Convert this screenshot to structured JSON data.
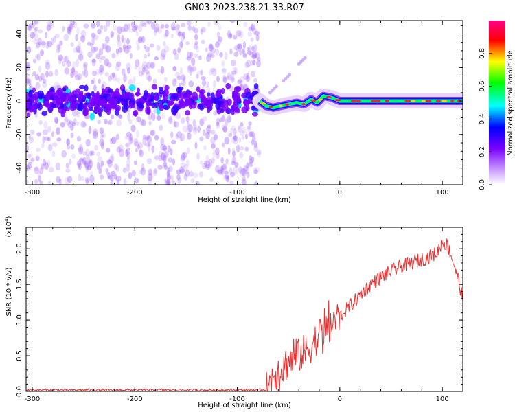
{
  "title": "GN03.2023.238.21.33.R07",
  "chart_data": [
    {
      "type": "heatmap",
      "xlabel": "Height of straight line (km)",
      "ylabel": "Frequency (Hz)",
      "xlim": [
        -306,
        120
      ],
      "ylim": [
        -50,
        48
      ],
      "x_ticks": [
        "-300",
        "-200",
        "-100",
        "0",
        "100"
      ],
      "y_ticks": [
        "-40",
        "-20",
        "0",
        "20",
        "40"
      ],
      "colorbar": {
        "label": "Normalized spectral amplitude",
        "range": [
          0.0,
          1.0
        ],
        "ticks": [
          "0.0",
          "0.2",
          "0.4",
          "0.6",
          "0.8"
        ],
        "colormap": [
          "#ffffff",
          "#7700ff",
          "#0000ff",
          "#00ffff",
          "#00ff00",
          "#ffff00",
          "#ff0000",
          "#ff0088"
        ]
      },
      "regions": [
        {
          "x_range": [
            -306,
            -78
          ],
          "description_level": "scattered noise",
          "center_band_hz": [
            -8,
            8
          ]
        },
        {
          "x_range": [
            -78,
            120
          ],
          "description_level": "coherent signal"
        }
      ],
      "signal_trace": [
        {
          "x": -78,
          "y": 0
        },
        {
          "x": -72,
          "y": -3
        },
        {
          "x": -65,
          "y": -4
        },
        {
          "x": -58,
          "y": -3
        },
        {
          "x": -50,
          "y": -2
        },
        {
          "x": -42,
          "y": -1
        },
        {
          "x": -35,
          "y": -2
        },
        {
          "x": -28,
          "y": 1
        },
        {
          "x": -22,
          "y": -1
        },
        {
          "x": -16,
          "y": 3
        },
        {
          "x": -8,
          "y": 2
        },
        {
          "x": 0,
          "y": 0
        },
        {
          "x": 20,
          "y": 0
        },
        {
          "x": 60,
          "y": 0
        },
        {
          "x": 100,
          "y": 0
        },
        {
          "x": 120,
          "y": 0
        }
      ],
      "feature_trace": [
        {
          "x": -68,
          "y": 5
        },
        {
          "x": -55,
          "y": 12
        },
        {
          "x": -40,
          "y": 22
        }
      ]
    },
    {
      "type": "line",
      "xlabel": "Height of straight line (km)",
      "ylabel": "SNR (10 * v/v)",
      "y_multiplier": "(x10",
      "y_multiplier_exp": "4",
      "y_multiplier_close": ")",
      "xlim": [
        -306,
        120
      ],
      "ylim": [
        0.0,
        2.3
      ],
      "x_ticks": [
        "-300",
        "-200",
        "-100",
        "0",
        "100"
      ],
      "y_ticks": [
        "0.0",
        "0.5",
        "1.0",
        "1.5",
        "2.0"
      ],
      "color": "#e83030",
      "series": [
        {
          "x": [
            -306,
            -280,
            -250,
            -200,
            -150,
            -100,
            -80,
            -70,
            -65,
            -60,
            -55,
            -50,
            -45,
            -40,
            -35,
            -30,
            -25,
            -20,
            -15,
            -10,
            -5,
            0,
            10,
            20,
            30,
            40,
            50,
            60,
            70,
            80,
            90,
            95,
            100,
            105,
            110,
            115,
            120
          ],
          "values": [
            0.02,
            0.02,
            0.02,
            0.02,
            0.02,
            0.02,
            0.02,
            0.03,
            0.25,
            0.3,
            0.35,
            0.42,
            0.45,
            0.5,
            0.55,
            0.6,
            0.7,
            0.8,
            0.85,
            0.9,
            1.0,
            1.05,
            1.2,
            1.35,
            1.5,
            1.6,
            1.68,
            1.75,
            1.8,
            1.85,
            1.9,
            1.95,
            2.1,
            2.05,
            1.85,
            1.6,
            1.3
          ]
        }
      ]
    }
  ]
}
